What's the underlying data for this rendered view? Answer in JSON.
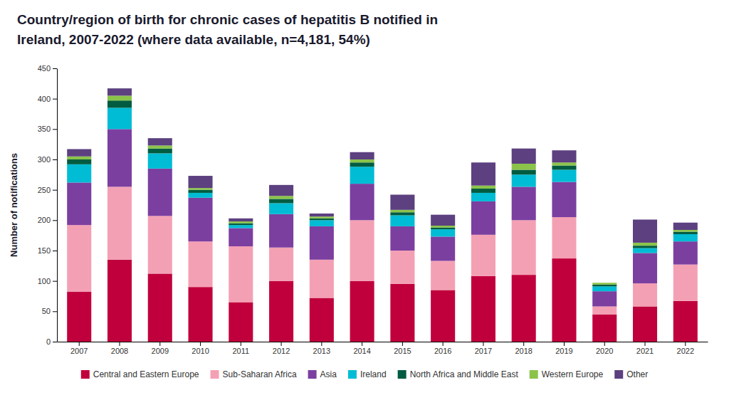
{
  "chart_data": {
    "type": "bar",
    "stacked": true,
    "grid": false,
    "legend": "bottom",
    "title": "Country/region of birth for chronic cases of hepatitis B notified in",
    "subtitle": "Ireland, 2007-2022 (where data available, n=4,181, 54%)",
    "y_label": "Number of notifications",
    "categories": [
      2007,
      2008,
      2009,
      2010,
      2011,
      2012,
      2013,
      2014,
      2015,
      2016,
      2017,
      2018,
      2019,
      2020,
      2021,
      2022
    ],
    "series": [
      {
        "name": "Central and Eastern Europe",
        "color": "#C0003C",
        "values": [
          82,
          135,
          112,
          90,
          65,
          100,
          72,
          100,
          95,
          85,
          108,
          110,
          137,
          45,
          58,
          67
        ]
      },
      {
        "name": "Sub-Saharan Africa",
        "color": "#F4A0B4",
        "values": [
          110,
          120,
          95,
          75,
          92,
          55,
          63,
          100,
          55,
          48,
          68,
          90,
          68,
          13,
          38,
          60
        ]
      },
      {
        "name": "Asia",
        "color": "#7B3FA0",
        "values": [
          70,
          95,
          78,
          72,
          30,
          55,
          55,
          60,
          40,
          40,
          55,
          55,
          58,
          25,
          50,
          38
        ]
      },
      {
        "name": "Ireland",
        "color": "#00BCD4",
        "values": [
          30,
          35,
          25,
          8,
          5,
          18,
          10,
          28,
          18,
          12,
          14,
          20,
          20,
          8,
          8,
          12
        ]
      },
      {
        "name": "North Africa and Middle East",
        "color": "#005C40",
        "values": [
          8,
          12,
          8,
          5,
          3,
          7,
          3,
          7,
          5,
          3,
          7,
          8,
          7,
          3,
          4,
          4
        ]
      },
      {
        "name": "Western Europe",
        "color": "#8BC34A",
        "values": [
          5,
          8,
          5,
          3,
          3,
          5,
          3,
          5,
          4,
          3,
          5,
          10,
          5,
          3,
          5,
          3
        ]
      },
      {
        "name": "Other",
        "color": "#5C4080",
        "values": [
          12,
          12,
          12,
          20,
          5,
          18,
          5,
          12,
          25,
          18,
          38,
          25,
          20,
          0,
          38,
          12
        ]
      }
    ],
    "ylim": [
      0,
      450
    ],
    "yticks": [
      0,
      50,
      100,
      150,
      200,
      250,
      300,
      350,
      400,
      450
    ]
  }
}
